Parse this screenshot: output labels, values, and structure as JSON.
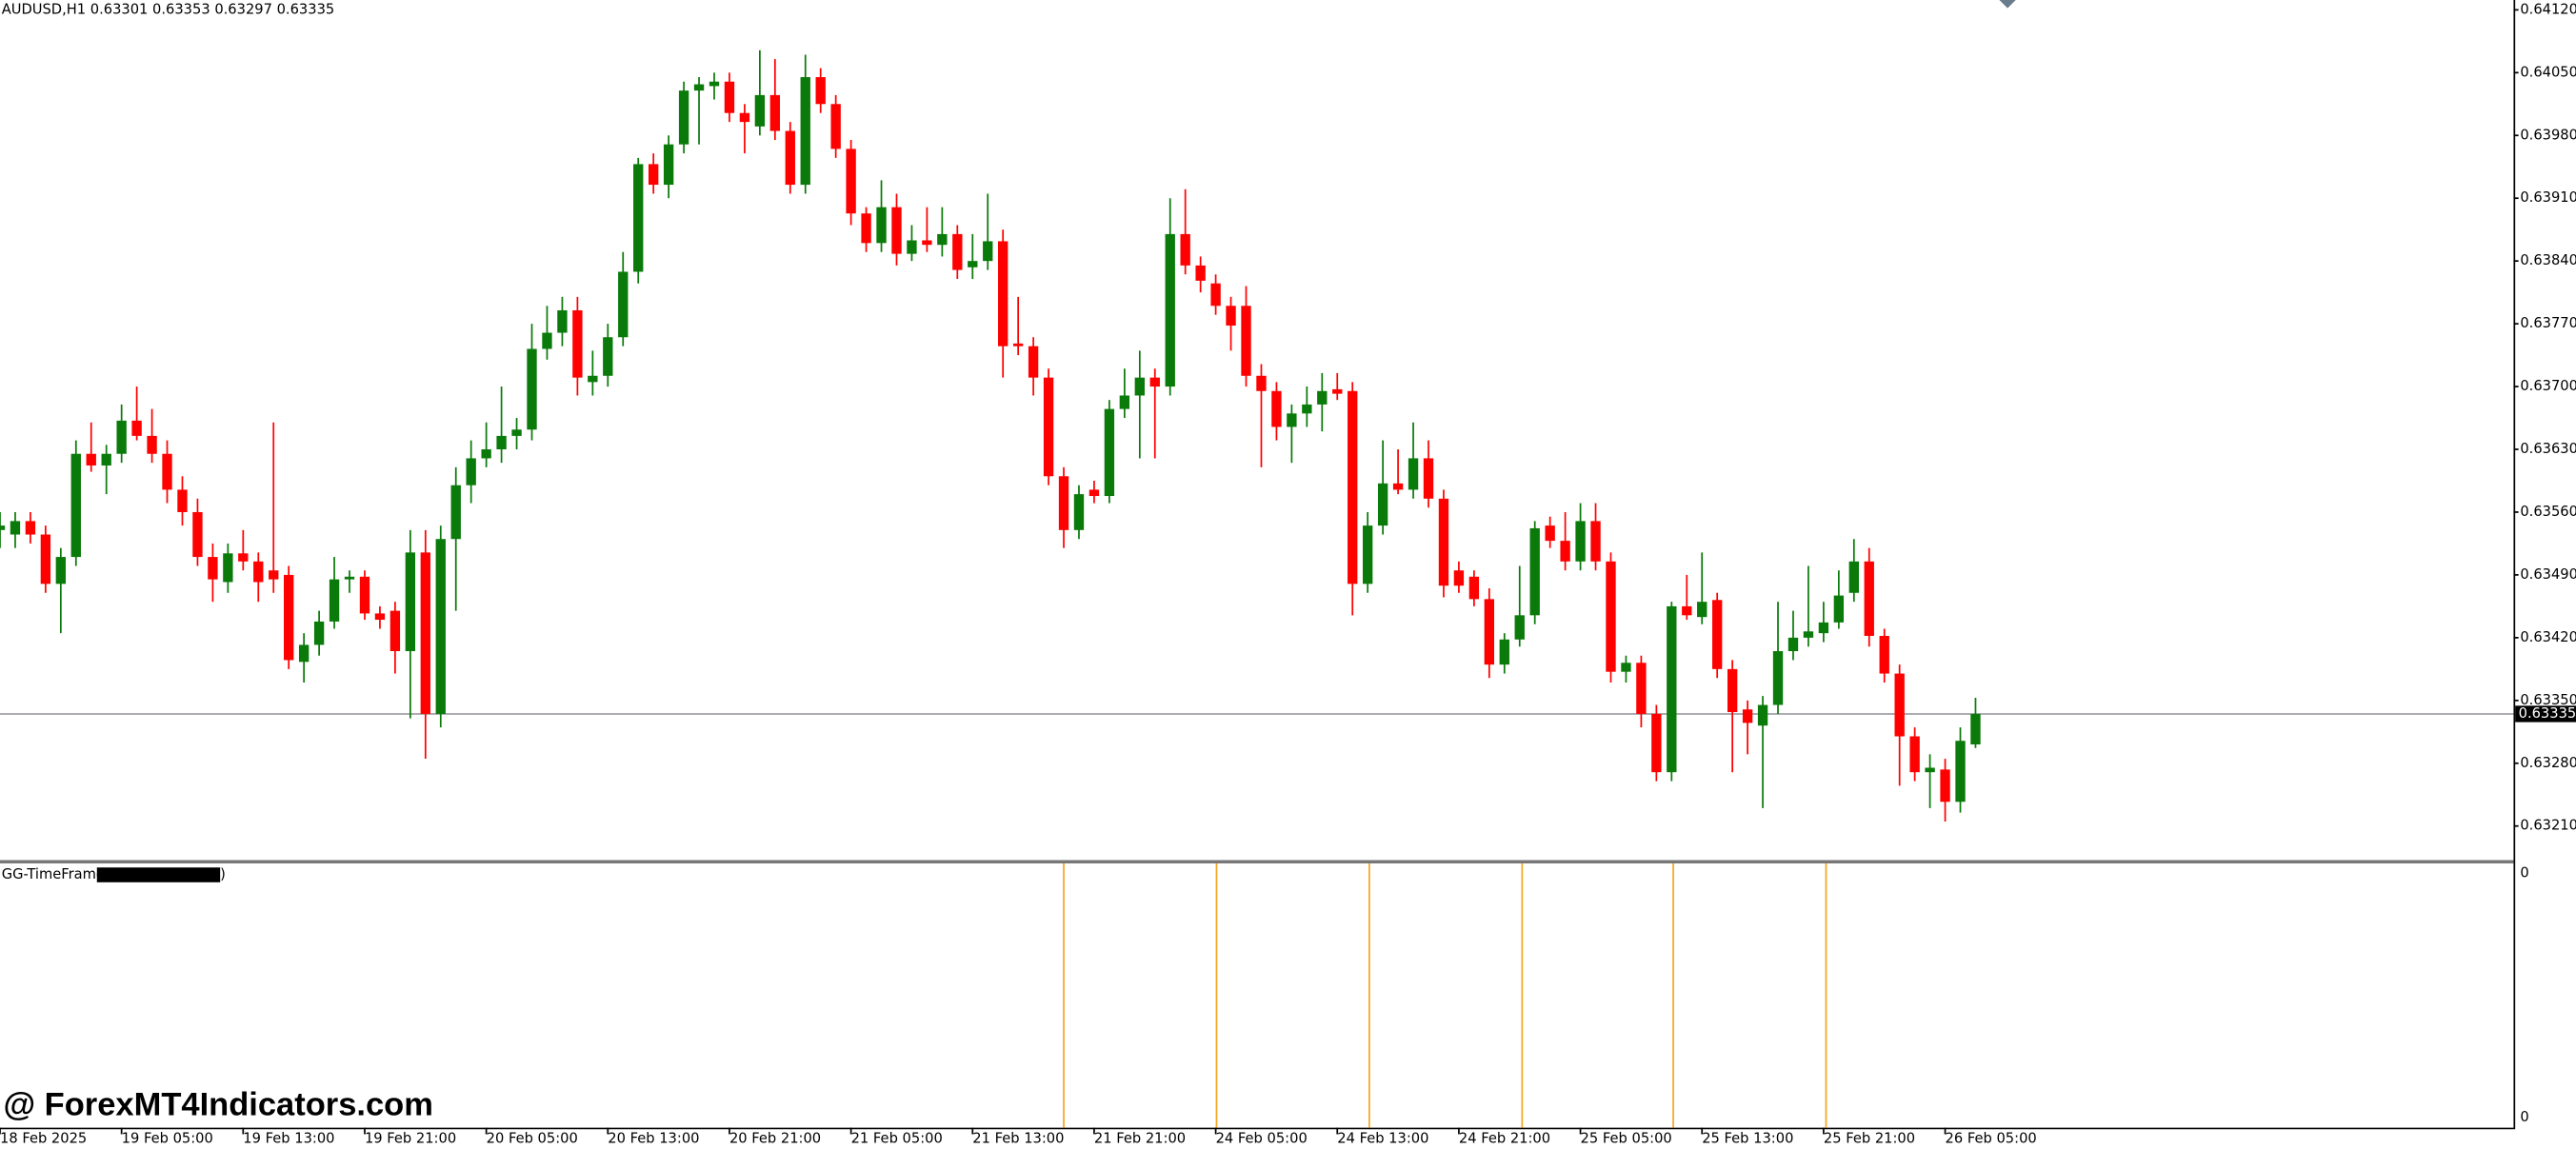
{
  "chart_data": {
    "type": "candlestick",
    "header": "AUDUSD,H1  0.63301 0.63353 0.63297 0.63335",
    "watermark": "@ ForexMT4Indicators.com",
    "up_color": "#0a7a0a",
    "down_color": "#ff0000",
    "ylim": [
      0.63172,
      0.64131
    ],
    "yticks": [
      {
        "value": 0.6412,
        "label": "0.64120"
      },
      {
        "value": 0.6405,
        "label": "0.64050"
      },
      {
        "value": 0.6398,
        "label": "0.63980"
      },
      {
        "value": 0.6391,
        "label": "0.63910"
      },
      {
        "value": 0.6384,
        "label": "0.63840"
      },
      {
        "value": 0.6377,
        "label": "0.63770"
      },
      {
        "value": 0.637,
        "label": "0.63700"
      },
      {
        "value": 0.6363,
        "label": "0.63630"
      },
      {
        "value": 0.6356,
        "label": "0.63560"
      },
      {
        "value": 0.6349,
        "label": "0.63490"
      },
      {
        "value": 0.6342,
        "label": "0.63420"
      },
      {
        "value": 0.6335,
        "label": "0.63350"
      },
      {
        "value": 0.6328,
        "label": "0.63280"
      },
      {
        "value": 0.6321,
        "label": "0.63210"
      }
    ],
    "last_price": {
      "value": 0.63335,
      "label": "0.63335"
    },
    "categories": [
      "18 Feb 2025",
      null,
      null,
      null,
      null,
      null,
      null,
      null,
      "19 Feb 05:00",
      null,
      null,
      null,
      null,
      null,
      null,
      null,
      "19 Feb 13:00",
      null,
      null,
      null,
      null,
      null,
      null,
      null,
      "19 Feb 21:00",
      null,
      null,
      null,
      null,
      null,
      null,
      null,
      "20 Feb 05:00",
      null,
      null,
      null,
      null,
      null,
      null,
      null,
      "20 Feb 13:00",
      null,
      null,
      null,
      null,
      null,
      null,
      null,
      "20 Feb 21:00",
      null,
      null,
      null,
      null,
      null,
      null,
      null,
      "21 Feb 05:00",
      null,
      null,
      null,
      null,
      null,
      null,
      null,
      "21 Feb 13:00",
      null,
      null,
      null,
      null,
      null,
      null,
      null,
      "21 Feb 21:00",
      null,
      null,
      null,
      null,
      null,
      null,
      null,
      "24 Feb 05:00",
      null,
      null,
      null,
      null,
      null,
      null,
      null,
      "24 Feb 13:00",
      null,
      null,
      null,
      null,
      null,
      null,
      null,
      "24 Feb 21:00",
      null,
      null,
      null,
      null,
      null,
      null,
      null,
      "25 Feb 05:00",
      null,
      null,
      null,
      null,
      null,
      null,
      null,
      "25 Feb 13:00",
      null,
      null,
      null,
      null,
      null,
      null,
      null,
      "25 Feb 21:00",
      null,
      null,
      null,
      null,
      null,
      null,
      null,
      "26 Feb 05:00",
      null,
      null
    ],
    "ohlc": [
      [
        0.6354,
        0.6356,
        0.6352,
        0.63545
      ],
      [
        0.63535,
        0.6356,
        0.6352,
        0.6355
      ],
      [
        0.6355,
        0.6356,
        0.63525,
        0.63535
      ],
      [
        0.63535,
        0.63545,
        0.6347,
        0.6348
      ],
      [
        0.6348,
        0.6352,
        0.63425,
        0.6351
      ],
      [
        0.6351,
        0.6364,
        0.635,
        0.63625
      ],
      [
        0.63625,
        0.6366,
        0.63605,
        0.63612
      ],
      [
        0.63612,
        0.63635,
        0.6358,
        0.63625
      ],
      [
        0.63625,
        0.6368,
        0.63615,
        0.63662
      ],
      [
        0.63662,
        0.637,
        0.6364,
        0.63645
      ],
      [
        0.63645,
        0.63675,
        0.63615,
        0.63625
      ],
      [
        0.63625,
        0.6364,
        0.6357,
        0.63585
      ],
      [
        0.63585,
        0.636,
        0.63545,
        0.6356
      ],
      [
        0.6356,
        0.63575,
        0.635,
        0.6351
      ],
      [
        0.6351,
        0.63525,
        0.6346,
        0.63485
      ],
      [
        0.63482,
        0.63525,
        0.6347,
        0.63514
      ],
      [
        0.63514,
        0.6354,
        0.63495,
        0.63505
      ],
      [
        0.63505,
        0.63515,
        0.6346,
        0.63482
      ],
      [
        0.63495,
        0.6366,
        0.6347,
        0.63485
      ],
      [
        0.6349,
        0.635,
        0.63385,
        0.63395
      ],
      [
        0.63393,
        0.63425,
        0.6337,
        0.63412
      ],
      [
        0.63412,
        0.6345,
        0.634,
        0.63438
      ],
      [
        0.63438,
        0.6351,
        0.6343,
        0.63485
      ],
      [
        0.63485,
        0.63495,
        0.6347,
        0.63488
      ],
      [
        0.63488,
        0.63495,
        0.6344,
        0.63447
      ],
      [
        0.63447,
        0.63455,
        0.6343,
        0.6344
      ],
      [
        0.6345,
        0.6346,
        0.6338,
        0.63405
      ],
      [
        0.63405,
        0.6354,
        0.6333,
        0.63515
      ],
      [
        0.63515,
        0.6354,
        0.63285,
        0.63335
      ],
      [
        0.63335,
        0.63545,
        0.6332,
        0.6353
      ],
      [
        0.6353,
        0.6361,
        0.6345,
        0.6359
      ],
      [
        0.6359,
        0.6364,
        0.6357,
        0.6362
      ],
      [
        0.6362,
        0.6366,
        0.6361,
        0.6363
      ],
      [
        0.6363,
        0.637,
        0.63615,
        0.63645
      ],
      [
        0.63645,
        0.63665,
        0.6363,
        0.63652
      ],
      [
        0.63652,
        0.6377,
        0.6364,
        0.63742
      ],
      [
        0.63742,
        0.6379,
        0.6373,
        0.6376
      ],
      [
        0.6376,
        0.638,
        0.63745,
        0.63785
      ],
      [
        0.63785,
        0.638,
        0.6369,
        0.6371
      ],
      [
        0.63705,
        0.6374,
        0.6369,
        0.63712
      ],
      [
        0.63712,
        0.6377,
        0.637,
        0.63755
      ],
      [
        0.63755,
        0.6385,
        0.63745,
        0.63828
      ],
      [
        0.63828,
        0.63955,
        0.63815,
        0.63948
      ],
      [
        0.63948,
        0.6396,
        0.63915,
        0.63925
      ],
      [
        0.63925,
        0.6398,
        0.6391,
        0.6397
      ],
      [
        0.6397,
        0.6404,
        0.6396,
        0.6403
      ],
      [
        0.6403,
        0.64045,
        0.6397,
        0.64037
      ],
      [
        0.64035,
        0.6405,
        0.6402,
        0.6404
      ],
      [
        0.6404,
        0.6405,
        0.63995,
        0.64005
      ],
      [
        0.64005,
        0.64015,
        0.6396,
        0.63995
      ],
      [
        0.6399,
        0.64075,
        0.6398,
        0.64025
      ],
      [
        0.64025,
        0.64065,
        0.63975,
        0.63985
      ],
      [
        0.63985,
        0.63995,
        0.63915,
        0.63925
      ],
      [
        0.63925,
        0.6407,
        0.63915,
        0.64045
      ],
      [
        0.64045,
        0.64055,
        0.64005,
        0.64015
      ],
      [
        0.64015,
        0.64025,
        0.63955,
        0.63965
      ],
      [
        0.63965,
        0.63975,
        0.6388,
        0.63893
      ],
      [
        0.63893,
        0.639,
        0.6385,
        0.6386
      ],
      [
        0.6386,
        0.6393,
        0.6385,
        0.639
      ],
      [
        0.639,
        0.63915,
        0.63835,
        0.63848
      ],
      [
        0.63848,
        0.6388,
        0.6384,
        0.63863
      ],
      [
        0.63863,
        0.639,
        0.6385,
        0.63858
      ],
      [
        0.63858,
        0.639,
        0.63845,
        0.6387
      ],
      [
        0.6387,
        0.6388,
        0.6382,
        0.6383
      ],
      [
        0.63833,
        0.6387,
        0.6382,
        0.6384
      ],
      [
        0.6384,
        0.63915,
        0.6383,
        0.63862
      ],
      [
        0.63862,
        0.63875,
        0.6371,
        0.63745
      ],
      [
        0.63748,
        0.638,
        0.63735,
        0.63745
      ],
      [
        0.63745,
        0.63755,
        0.6369,
        0.6371
      ],
      [
        0.6371,
        0.6372,
        0.6359,
        0.636
      ],
      [
        0.636,
        0.6361,
        0.6352,
        0.6354
      ],
      [
        0.6354,
        0.6359,
        0.6353,
        0.6358
      ],
      [
        0.63585,
        0.63595,
        0.6357,
        0.63578
      ],
      [
        0.63578,
        0.63685,
        0.6357,
        0.63675
      ],
      [
        0.63675,
        0.6372,
        0.63665,
        0.6369
      ],
      [
        0.6369,
        0.6374,
        0.6362,
        0.6371
      ],
      [
        0.6371,
        0.6372,
        0.6362,
        0.637
      ],
      [
        0.637,
        0.6391,
        0.6369,
        0.6387
      ],
      [
        0.6387,
        0.6392,
        0.63825,
        0.63835
      ],
      [
        0.63835,
        0.63845,
        0.63805,
        0.63818
      ],
      [
        0.63815,
        0.63825,
        0.6378,
        0.6379
      ],
      [
        0.6379,
        0.638,
        0.6374,
        0.63768
      ],
      [
        0.6379,
        0.63812,
        0.637,
        0.63712
      ],
      [
        0.63712,
        0.63725,
        0.6361,
        0.63695
      ],
      [
        0.63695,
        0.63705,
        0.6364,
        0.63655
      ],
      [
        0.63655,
        0.6368,
        0.63615,
        0.6367
      ],
      [
        0.6367,
        0.637,
        0.63655,
        0.6368
      ],
      [
        0.6368,
        0.63715,
        0.6365,
        0.63695
      ],
      [
        0.63697,
        0.63715,
        0.63685,
        0.63692
      ],
      [
        0.63695,
        0.63705,
        0.63445,
        0.6348
      ],
      [
        0.6348,
        0.6356,
        0.6347,
        0.63545
      ],
      [
        0.63545,
        0.6364,
        0.63535,
        0.63592
      ],
      [
        0.63592,
        0.6363,
        0.6358,
        0.63585
      ],
      [
        0.63585,
        0.6366,
        0.63575,
        0.6362
      ],
      [
        0.6362,
        0.6364,
        0.63565,
        0.63575
      ],
      [
        0.63575,
        0.63585,
        0.63465,
        0.63478
      ],
      [
        0.63495,
        0.63505,
        0.6347,
        0.63478
      ],
      [
        0.63488,
        0.63495,
        0.63455,
        0.63463
      ],
      [
        0.63463,
        0.63475,
        0.63375,
        0.6339
      ],
      [
        0.6339,
        0.63425,
        0.6338,
        0.63418
      ],
      [
        0.63418,
        0.635,
        0.6341,
        0.63445
      ],
      [
        0.63445,
        0.6355,
        0.63435,
        0.63542
      ],
      [
        0.63545,
        0.63555,
        0.6352,
        0.63528
      ],
      [
        0.63528,
        0.6356,
        0.63495,
        0.63505
      ],
      [
        0.63505,
        0.6357,
        0.63495,
        0.6355
      ],
      [
        0.6355,
        0.6357,
        0.63495,
        0.63505
      ],
      [
        0.63505,
        0.63515,
        0.6337,
        0.63382
      ],
      [
        0.63382,
        0.634,
        0.6337,
        0.63392
      ],
      [
        0.63392,
        0.634,
        0.6332,
        0.63335
      ],
      [
        0.63335,
        0.63345,
        0.6326,
        0.6327
      ],
      [
        0.6327,
        0.6346,
        0.6326,
        0.63455
      ],
      [
        0.63455,
        0.6349,
        0.6344,
        0.63445
      ],
      [
        0.63443,
        0.63515,
        0.63435,
        0.6346
      ],
      [
        0.63462,
        0.6347,
        0.63375,
        0.63385
      ],
      [
        0.63385,
        0.63395,
        0.6327,
        0.63337
      ],
      [
        0.6334,
        0.6335,
        0.6329,
        0.63325
      ],
      [
        0.63322,
        0.63355,
        0.6323,
        0.63345
      ],
      [
        0.63345,
        0.6346,
        0.63335,
        0.63405
      ],
      [
        0.63405,
        0.6345,
        0.63395,
        0.6342
      ],
      [
        0.6342,
        0.635,
        0.6341,
        0.63427
      ],
      [
        0.63425,
        0.6346,
        0.63415,
        0.63437
      ],
      [
        0.63437,
        0.63495,
        0.6343,
        0.63467
      ],
      [
        0.6347,
        0.6353,
        0.6346,
        0.63505
      ],
      [
        0.63505,
        0.6352,
        0.6341,
        0.63422
      ],
      [
        0.63422,
        0.6343,
        0.6337,
        0.6338
      ],
      [
        0.6338,
        0.6339,
        0.63255,
        0.6331
      ],
      [
        0.6331,
        0.6332,
        0.6326,
        0.6327
      ],
      [
        0.6327,
        0.6329,
        0.6323,
        0.63275
      ],
      [
        0.63273,
        0.63285,
        0.63215,
        0.63237
      ],
      [
        0.63237,
        0.6332,
        0.63225,
        0.63305
      ],
      [
        0.63301,
        0.63353,
        0.63297,
        0.63335
      ]
    ],
    "indicator": {
      "name": "GG-TimeFramer",
      "suffix": ")",
      "axis_top": "0",
      "axis_bottom": "0"
    }
  }
}
